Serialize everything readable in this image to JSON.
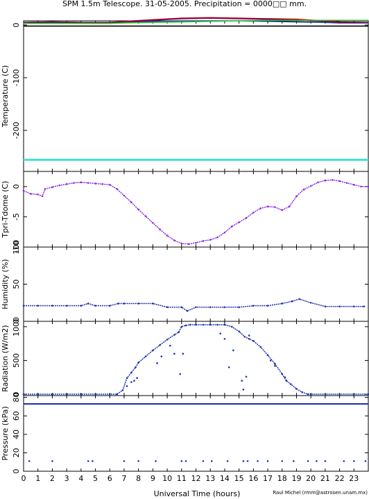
{
  "title": "SPM 1.5m Telescope. 31-05-2005. Precipitation = 0000□□ mm.",
  "xlabel": "Universal Time (hours)",
  "credit": "Raul Michel (rmm@astrosen.unam.mx)",
  "colors": {
    "temp_black": "#000000",
    "temp_red": "#cc0000",
    "temp_blue": "#1a3c9e",
    "temp_green": "#22cc22",
    "temp_purple": "#800060",
    "temp_cyan": "#40e0d0",
    "tdiff": "#8a2be2",
    "humidity": "#1a30b0",
    "radiation": "#1a30b0",
    "pressure": "#1a30b0"
  },
  "chart_data": [
    {
      "type": "line",
      "panel": "temperature",
      "ylabel": "Temperature (C)",
      "ylim": [
        -278,
        8
      ],
      "yticks": [
        0,
        -100,
        -200
      ],
      "xlim": [
        0,
        24
      ],
      "series": [
        {
          "color": "#000000",
          "x": [
            0,
            24
          ],
          "y": [
            -2,
            -2
          ]
        },
        {
          "color": "#40e0d0",
          "x": [
            0,
            24
          ],
          "y": [
            -256,
            -256
          ]
        },
        {
          "color": "#1a3c9e",
          "x": [
            0,
            2,
            4,
            6,
            7,
            9,
            11,
            13,
            15,
            17,
            19,
            21,
            22,
            24
          ],
          "y": [
            4,
            5,
            4,
            4,
            5,
            7,
            8,
            8,
            8,
            7,
            6,
            5,
            4,
            4
          ]
        },
        {
          "color": "#cc0000",
          "x": [
            0,
            2,
            4,
            6,
            7,
            9,
            11,
            13,
            15,
            17,
            19,
            21,
            22,
            24
          ],
          "y": [
            5,
            6,
            5,
            5,
            7,
            10,
            13,
            14,
            13,
            12,
            11,
            8,
            6,
            5
          ]
        },
        {
          "color": "#800060",
          "x": [
            0,
            2,
            4,
            6,
            7,
            9,
            11,
            13,
            15,
            17,
            19,
            21,
            22,
            24
          ],
          "y": [
            5,
            6,
            5,
            5,
            6,
            9,
            12,
            13,
            12,
            11,
            9,
            7,
            5,
            5
          ]
        },
        {
          "color": "#22cc22",
          "x": [
            0,
            2,
            4,
            6,
            7,
            9,
            11,
            13,
            15,
            17,
            19,
            21,
            22,
            24
          ],
          "y": [
            3,
            3,
            3,
            3,
            4,
            5,
            6,
            7,
            8,
            9,
            9,
            9,
            9,
            9
          ]
        }
      ]
    },
    {
      "type": "scatter",
      "panel": "tdiff",
      "ylabel": "Tpri-Tdome (C)",
      "ylim": [
        -10,
        2.5
      ],
      "yticks": [
        0,
        -5,
        -10
      ],
      "xlim": [
        0,
        24
      ],
      "series": [
        {
          "color": "#8a2be2",
          "x": [
            0,
            0.5,
            1,
            1.3,
            1.5,
            2,
            2.5,
            3,
            3.5,
            4,
            4.5,
            5,
            5.5,
            6,
            6.5,
            7,
            7.5,
            8,
            8.5,
            9,
            9.5,
            10,
            10.5,
            11,
            11.5,
            12,
            12.5,
            13,
            13.5,
            14,
            14.5,
            15,
            15.5,
            16,
            16.5,
            17,
            17.5,
            18,
            18.5,
            19,
            19.5,
            20,
            20.5,
            21,
            21.5,
            22,
            22.5,
            23,
            23.5,
            24
          ],
          "y": [
            -0.7,
            -1.2,
            -1.3,
            -1.6,
            -0.4,
            -0.1,
            0.2,
            0.4,
            0.6,
            0.7,
            0.6,
            0.5,
            0.4,
            0.3,
            -0.4,
            -1.5,
            -2.6,
            -3.8,
            -4.9,
            -6.0,
            -7.1,
            -8.1,
            -8.9,
            -9.4,
            -9.5,
            -9.3,
            -9.0,
            -8.8,
            -8.4,
            -7.6,
            -6.6,
            -5.9,
            -5.2,
            -4.3,
            -3.6,
            -3.3,
            -3.4,
            -3.9,
            -3.3,
            -1.6,
            -0.5,
            0.1,
            0.7,
            1.0,
            1.1,
            0.9,
            0.6,
            0.3,
            0.0,
            0.0
          ]
        }
      ]
    },
    {
      "type": "scatter",
      "panel": "humidity",
      "ylabel": "Humidity (%)",
      "ylim": [
        0,
        100
      ],
      "yticks": [
        0,
        50,
        100
      ],
      "xlim": [
        0,
        24
      ],
      "series": [
        {
          "color": "#1a30b0",
          "x": [
            0,
            1,
            2,
            3,
            4,
            4.5,
            5,
            6,
            6.6,
            7,
            8,
            9,
            10,
            11,
            11.4,
            12,
            13,
            14,
            15,
            16,
            17,
            18,
            18.7,
            19.2,
            20,
            21,
            22,
            23,
            23.7
          ],
          "y": [
            21,
            21,
            21,
            21,
            21,
            24,
            21,
            21,
            24,
            24,
            24,
            24,
            19,
            19,
            14,
            19,
            19,
            19,
            19,
            21,
            21,
            24,
            27,
            30,
            25,
            20,
            20,
            20,
            20
          ]
        }
      ]
    },
    {
      "type": "scatter",
      "panel": "radiation",
      "ylabel": "Radiation (W/m2)",
      "ylim": [
        -20,
        1080
      ],
      "yticks": [
        0,
        500,
        1000
      ],
      "xlim": [
        0,
        24
      ],
      "series": [
        {
          "color": "#1a30b0",
          "x": [
            0,
            1,
            2,
            3,
            4,
            5,
            6,
            6.5,
            6.9,
            7.2,
            7.5,
            7.8,
            8,
            8.5,
            9,
            9.5,
            10,
            10.5,
            10.8,
            11,
            11.3,
            11.6,
            12,
            12.5,
            13,
            13.5,
            14,
            14.5,
            15,
            15.4,
            15.7,
            16,
            16.5,
            17,
            17.5,
            18,
            18.3,
            18.6,
            19,
            19.4,
            19.8,
            20,
            21,
            22,
            23,
            24
          ],
          "y": [
            0,
            0,
            0,
            0,
            0,
            0,
            0,
            0,
            60,
            240,
            320,
            400,
            470,
            560,
            650,
            730,
            810,
            880,
            920,
            1000,
            1020,
            1030,
            1030,
            1030,
            1030,
            1030,
            1030,
            1000,
            930,
            850,
            820,
            790,
            700,
            580,
            450,
            300,
            200,
            150,
            80,
            30,
            0,
            0,
            0,
            0,
            0,
            0
          ]
        },
        {
          "color": "#1a30b0",
          "x": [
            7.2,
            7.5,
            7.7,
            7.9,
            9.3,
            9.6,
            10.2,
            10.5,
            10.9,
            11.1,
            13.7,
            14.0,
            14.3,
            14.6,
            15.2,
            15.3,
            15.5,
            15.7,
            17.2,
            17.5,
            18.2
          ],
          "y": [
            120,
            180,
            200,
            240,
            460,
            560,
            720,
            600,
            300,
            600,
            900,
            820,
            400,
            650,
            200,
            70,
            260,
            870,
            500,
            420,
            250
          ]
        }
      ]
    },
    {
      "type": "scatter",
      "panel": "pressure",
      "ylabel": "Pressure (kPa)",
      "ylim": [
        0,
        82
      ],
      "yticks": [
        0,
        20,
        40,
        60,
        80
      ],
      "xlim": [
        0,
        24
      ],
      "series": [
        {
          "color": "#1a30b0",
          "x": [
            0,
            24
          ],
          "y": [
            73,
            73
          ]
        },
        {
          "color": "#1a30b0",
          "x": [
            0.4,
            2.0,
            4.5,
            4.8,
            7.0,
            8.0,
            9.2,
            11.0,
            11.3,
            12.5,
            13.1,
            14.2,
            15.3,
            15.6,
            16.3,
            17.0,
            18.0,
            18.8,
            19.8,
            20.4,
            21.0,
            22.3,
            23.0,
            23.8
          ],
          "y": [
            11,
            11,
            11,
            11,
            11,
            11,
            11,
            11,
            11,
            11,
            11,
            11,
            11,
            11,
            11,
            11,
            11,
            11,
            11,
            11,
            11,
            11,
            11,
            11
          ]
        }
      ]
    }
  ],
  "xticks": [
    "0",
    "1",
    "2",
    "3",
    "4",
    "5",
    "6",
    "7",
    "8",
    "9",
    "10",
    "11",
    "12",
    "13",
    "14",
    "15",
    "16",
    "17",
    "18",
    "19",
    "20",
    "21",
    "22",
    "23"
  ]
}
